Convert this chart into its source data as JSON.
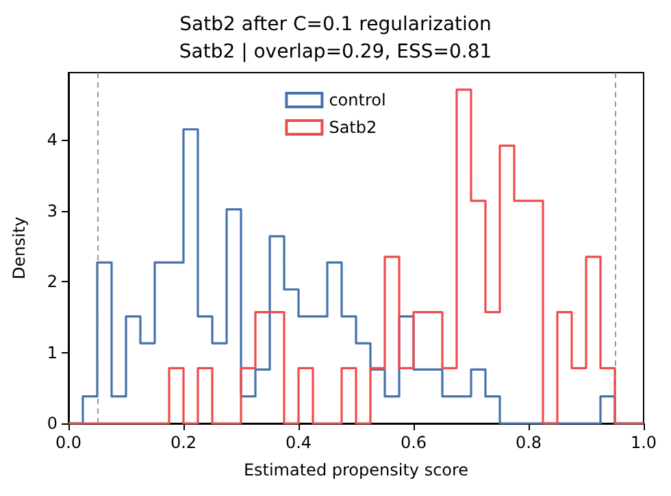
{
  "chart_data": {
    "type": "histogram",
    "title": "Satb2 after C=0.1 regularization",
    "subtitle": "Satb2 | overlap=0.29, ESS=0.81",
    "xlabel": "Estimated propensity score",
    "ylabel": "Density",
    "bins": [
      0,
      0.025,
      0.05,
      0.075,
      0.1,
      0.125,
      0.15,
      0.175,
      0.2,
      0.225,
      0.25,
      0.275,
      0.3,
      0.325,
      0.35,
      0.375,
      0.4,
      0.425,
      0.45,
      0.475,
      0.5,
      0.525,
      0.55,
      0.575,
      0.6,
      0.625,
      0.65,
      0.675,
      0.7,
      0.725,
      0.75,
      0.775,
      0.8,
      0.825,
      0.85,
      0.875,
      0.9,
      0.925,
      0.95,
      0.975,
      1
    ],
    "series": [
      {
        "name": "control",
        "color": "#4572aa",
        "values": [
          0,
          0.38,
          2.27,
          0.38,
          1.51,
          1.13,
          2.27,
          2.27,
          4.15,
          1.51,
          1.13,
          3.02,
          0.38,
          0.76,
          2.64,
          1.89,
          1.51,
          1.51,
          2.27,
          1.51,
          1.13,
          0.76,
          0.38,
          1.51,
          0.76,
          0.76,
          0.38,
          0.38,
          0.76,
          0.38,
          0,
          0,
          0,
          0,
          0,
          0,
          0,
          0.38,
          0,
          0
        ]
      },
      {
        "name": "Satb2",
        "color": "#ee4c4c",
        "values": [
          0,
          0,
          0,
          0,
          0,
          0,
          0,
          0.78,
          0,
          0.78,
          0,
          0,
          0.78,
          1.57,
          1.57,
          0,
          0.78,
          0,
          0,
          0.78,
          0,
          0.78,
          2.35,
          0.78,
          1.57,
          1.57,
          0.78,
          4.71,
          3.14,
          1.57,
          3.92,
          3.14,
          3.14,
          0,
          1.57,
          0.78,
          2.35,
          0.78,
          0,
          0
        ]
      }
    ],
    "xlim": [
      0,
      1
    ],
    "xticks": [
      {
        "value": 0,
        "label": "0.0"
      },
      {
        "value": 0.2,
        "label": "0.2"
      },
      {
        "value": 0.4,
        "label": "0.4"
      },
      {
        "value": 0.6,
        "label": "0.6"
      },
      {
        "value": 0.8,
        "label": "0.8"
      },
      {
        "value": 1,
        "label": "1.0"
      }
    ],
    "ylim": [
      0,
      4.95
    ],
    "yticks": [
      0,
      1,
      2,
      3,
      4
    ],
    "ref_lines": [
      {
        "axis": "x",
        "value": 0.05,
        "color": "#808080",
        "line_style": "dashed"
      },
      {
        "axis": "x",
        "value": 0.95,
        "color": "#808080",
        "line_style": "dashed"
      }
    ],
    "legend": "top",
    "grid": false
  }
}
